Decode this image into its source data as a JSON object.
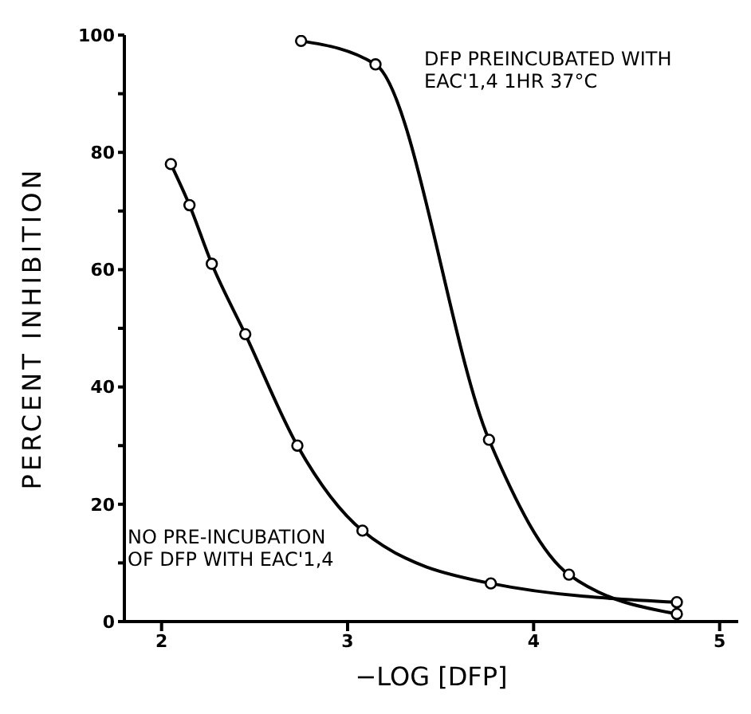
{
  "chart_data": {
    "type": "line",
    "xlabel": "−LOG [DFP]",
    "ylabel": "PERCENT INHIBITION",
    "xlim": [
      1.8,
      5.1
    ],
    "ylim": [
      0,
      100
    ],
    "xticks": [
      2,
      3,
      4,
      5
    ],
    "yticks": [
      0,
      {
        "value": 10,
        "label": null
      },
      20,
      {
        "value": 30,
        "label": null
      },
      40,
      {
        "value": 50,
        "label": null
      },
      60,
      {
        "value": 70,
        "label": null
      },
      80,
      {
        "value": 90,
        "label": null
      },
      100
    ],
    "marker": "circle",
    "line_style": "solid",
    "series": [
      {
        "name": "NO PRE-INCUBATION OF DFP WITH EAC'1,4",
        "color": "#000000",
        "x": [
          2.05,
          2.15,
          2.27,
          2.45,
          2.73,
          3.08,
          3.77,
          4.77
        ],
        "values": [
          78,
          71,
          61,
          49,
          30,
          15.5,
          6.5,
          3.3
        ]
      },
      {
        "name": "DFP PREINCUBATED WITH EAC'1,4 1HR 37°C",
        "color": "#000000",
        "x": [
          2.75,
          3.15,
          3.76,
          4.19,
          4.77
        ],
        "values": [
          99,
          95,
          31,
          8,
          1.3
        ]
      }
    ]
  }
}
